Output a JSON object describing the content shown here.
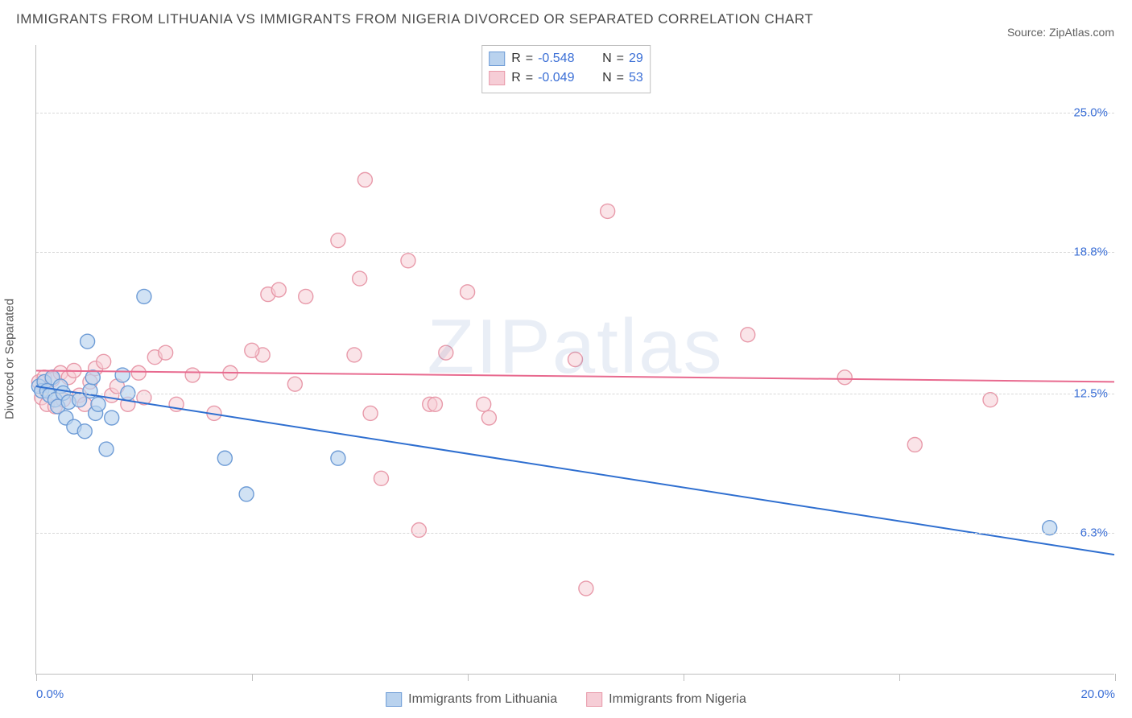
{
  "title": "IMMIGRANTS FROM LITHUANIA VS IMMIGRANTS FROM NIGERIA DIVORCED OR SEPARATED CORRELATION CHART",
  "source_label": "Source: ",
  "source_value": "ZipAtlas.com",
  "watermark_left": "ZIP",
  "watermark_right": "atlas",
  "chart": {
    "type": "scatter+regression",
    "background_color": "#ffffff",
    "grid_color": "#d8d8d8",
    "axis_color": "#bfbfbf",
    "tick_label_color": "#3b6fd6",
    "ylabel": "Divorced or Separated",
    "ylabel_color": "#555555",
    "label_fontsize": 15,
    "title_fontsize": 17,
    "title_color": "#4a4a4a",
    "xlim": [
      0,
      20
    ],
    "ylim": [
      0,
      28
    ],
    "y_gridlines": [
      6.3,
      12.5,
      18.8,
      25.0
    ],
    "y_tick_labels": [
      "6.3%",
      "12.5%",
      "18.8%",
      "25.0%"
    ],
    "x_tick_positions": [
      0,
      4,
      8,
      12,
      16,
      20
    ],
    "x_tick_labels_shown": {
      "0": "0.0%",
      "20": "20.0%"
    },
    "marker_radius": 9,
    "marker_stroke_width": 1.4,
    "line_width": 2,
    "series": [
      {
        "name": "Immigrants from Lithuania",
        "fill": "#b9d2ee",
        "stroke": "#6e9cd6",
        "fill_opacity": 0.65,
        "line_color": "#2f6fd0",
        "R": "-0.548",
        "N": "29",
        "regression": {
          "x1": 0,
          "y1": 12.8,
          "x2": 20,
          "y2": 5.3
        },
        "points": [
          [
            0.05,
            12.8
          ],
          [
            0.1,
            12.6
          ],
          [
            0.15,
            13.0
          ],
          [
            0.2,
            12.6
          ],
          [
            0.25,
            12.4
          ],
          [
            0.3,
            13.2
          ],
          [
            0.35,
            12.2
          ],
          [
            0.4,
            11.9
          ],
          [
            0.45,
            12.8
          ],
          [
            0.5,
            12.5
          ],
          [
            0.55,
            11.4
          ],
          [
            0.6,
            12.1
          ],
          [
            0.7,
            11.0
          ],
          [
            0.8,
            12.2
          ],
          [
            0.9,
            10.8
          ],
          [
            1.0,
            12.6
          ],
          [
            1.05,
            13.2
          ],
          [
            1.1,
            11.6
          ],
          [
            1.15,
            12.0
          ],
          [
            1.3,
            10.0
          ],
          [
            0.95,
            14.8
          ],
          [
            1.6,
            13.3
          ],
          [
            1.7,
            12.5
          ],
          [
            2.0,
            16.8
          ],
          [
            3.5,
            9.6
          ],
          [
            3.9,
            8.0
          ],
          [
            5.6,
            9.6
          ],
          [
            1.4,
            11.4
          ],
          [
            18.8,
            6.5
          ]
        ]
      },
      {
        "name": "Immigrants from Nigeria",
        "fill": "#f6cdd6",
        "stroke": "#e89aaa",
        "fill_opacity": 0.55,
        "line_color": "#e86a8f",
        "R": "-0.049",
        "N": "53",
        "regression": {
          "x1": 0,
          "y1": 13.5,
          "x2": 20,
          "y2": 13.0
        },
        "points": [
          [
            0.05,
            13.0
          ],
          [
            0.1,
            12.3
          ],
          [
            0.15,
            13.2
          ],
          [
            0.2,
            12.0
          ],
          [
            0.3,
            13.1
          ],
          [
            0.35,
            11.9
          ],
          [
            0.45,
            13.4
          ],
          [
            0.5,
            12.2
          ],
          [
            0.6,
            13.2
          ],
          [
            0.7,
            13.5
          ],
          [
            0.8,
            12.4
          ],
          [
            0.9,
            12.0
          ],
          [
            1.0,
            13.0
          ],
          [
            1.1,
            13.6
          ],
          [
            1.25,
            13.9
          ],
          [
            1.4,
            12.4
          ],
          [
            1.5,
            12.8
          ],
          [
            1.7,
            12.0
          ],
          [
            1.9,
            13.4
          ],
          [
            2.0,
            12.3
          ],
          [
            2.2,
            14.1
          ],
          [
            2.4,
            14.3
          ],
          [
            2.6,
            12.0
          ],
          [
            2.9,
            13.3
          ],
          [
            3.3,
            11.6
          ],
          [
            3.6,
            13.4
          ],
          [
            4.2,
            14.2
          ],
          [
            4.3,
            16.9
          ],
          [
            4.5,
            17.1
          ],
          [
            4.8,
            12.9
          ],
          [
            5.0,
            16.8
          ],
          [
            5.6,
            19.3
          ],
          [
            5.9,
            14.2
          ],
          [
            6.0,
            17.6
          ],
          [
            6.1,
            22.0
          ],
          [
            6.2,
            11.6
          ],
          [
            6.4,
            8.7
          ],
          [
            6.9,
            18.4
          ],
          [
            7.1,
            6.4
          ],
          [
            7.3,
            12.0
          ],
          [
            7.4,
            12.0
          ],
          [
            7.6,
            14.3
          ],
          [
            8.0,
            17.0
          ],
          [
            8.3,
            12.0
          ],
          [
            8.4,
            11.4
          ],
          [
            10.0,
            14.0
          ],
          [
            10.6,
            20.6
          ],
          [
            10.2,
            3.8
          ],
          [
            13.2,
            15.1
          ],
          [
            15.0,
            13.2
          ],
          [
            16.3,
            10.2
          ],
          [
            17.7,
            12.2
          ],
          [
            4.0,
            14.4
          ]
        ]
      }
    ]
  },
  "legend_top": {
    "r_label": "R",
    "n_label": "N",
    "eq": "="
  },
  "legend_bottom": {
    "items": [
      "Immigrants from Lithuania",
      "Immigrants from Nigeria"
    ]
  }
}
